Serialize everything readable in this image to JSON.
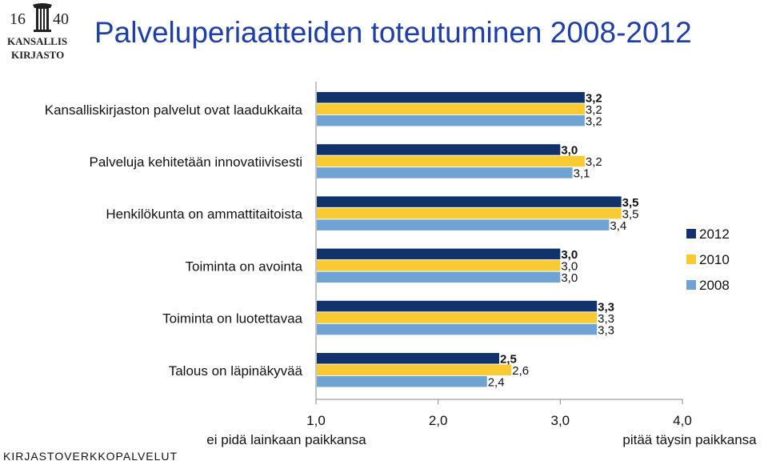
{
  "header": {
    "logo": {
      "year_text": "1640",
      "line1": "KANSALLIS",
      "line2": "KIRJASTO"
    },
    "title": "Palveluperiaatteiden toteutuminen 2008-2012"
  },
  "footer": {
    "text": "KIRJASTOVERKKOPALVELUT"
  },
  "colors": {
    "2012": "#12326b",
    "2010": "#f7cb31",
    "2008": "#6ea3d3"
  },
  "chart_data": {
    "type": "bar",
    "orientation": "horizontal",
    "title": "Palveluperiaatteiden toteutuminen 2008-2012",
    "categories": [
      "Kansalliskirjaston palvelut ovat laadukkaita",
      "Palveluja kehitetään innovatiivisesti",
      "Henkilökunta on ammattitaitoista",
      "Toiminta on avointa",
      "Toiminta on luotettavaa",
      "Talous on läpinäkyvää"
    ],
    "series": [
      {
        "name": "2012",
        "values": [
          3.2,
          3.0,
          3.5,
          3.0,
          3.3,
          2.5
        ]
      },
      {
        "name": "2010",
        "values": [
          3.2,
          3.2,
          3.5,
          3.0,
          3.3,
          2.6
        ]
      },
      {
        "name": "2008",
        "values": [
          3.2,
          3.1,
          3.4,
          3.0,
          3.3,
          2.4
        ]
      }
    ],
    "value_labels": [
      [
        "3,2",
        "3,2",
        "3,2"
      ],
      [
        "3,0",
        "3,2",
        "3,1"
      ],
      [
        "3,5",
        "3,5",
        "3,4"
      ],
      [
        "3,0",
        "3,0",
        "3,0"
      ],
      [
        "3,3",
        "3,3",
        "3,3"
      ],
      [
        "2,5",
        "2,6",
        "2,4"
      ]
    ],
    "xlim": [
      1.0,
      4.0
    ],
    "x_ticks": [
      1.0,
      2.0,
      3.0,
      4.0
    ],
    "x_tick_labels": [
      "1,0",
      "2,0",
      "3,0",
      "4,0"
    ],
    "x_low_label": "ei pidä lainkaan paikkansa",
    "x_high_label": "pitää täysin paikkansa",
    "legend_position": "right",
    "grid": false
  }
}
